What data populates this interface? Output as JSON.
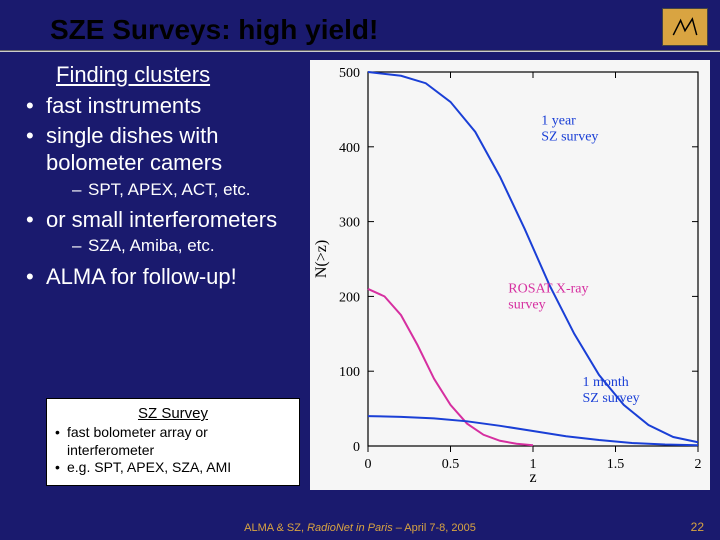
{
  "title": "SZE Surveys: high yield!",
  "logo_name": "NRAO",
  "left": {
    "heading": "Finding clusters",
    "bullets": [
      {
        "text": "fast instruments"
      },
      {
        "text": "single dishes with bolometer camers",
        "sub": [
          "SPT, APEX, ACT, etc."
        ]
      },
      {
        "text": "or small interferometers",
        "sub": [
          "SZA, Amiba, etc."
        ]
      },
      {
        "text": "ALMA for follow-up!"
      }
    ]
  },
  "box": {
    "title": "SZ Survey",
    "items": [
      "fast bolometer array or interferometer",
      "e.g. SPT, APEX, SZA, AMI"
    ]
  },
  "chart": {
    "type": "line",
    "background_color": "#f6f6f6",
    "axis_color": "#000000",
    "tick_color": "#000000",
    "xlabel": "z",
    "ylabel": "N(>z)",
    "label_fontsize": 16,
    "tick_fontsize": 14,
    "xlim": [
      0,
      2
    ],
    "ylim": [
      0,
      500
    ],
    "xtick_step": 0.5,
    "ytick_step": 100,
    "line_width": 2,
    "series": [
      {
        "label": "1 year SZ survey",
        "color": "#1a3fd6",
        "label_pos": {
          "x": 1.05,
          "y": 430
        },
        "points": [
          [
            0,
            500
          ],
          [
            0.2,
            495
          ],
          [
            0.35,
            485
          ],
          [
            0.5,
            460
          ],
          [
            0.65,
            420
          ],
          [
            0.8,
            360
          ],
          [
            0.95,
            290
          ],
          [
            1.1,
            215
          ],
          [
            1.25,
            150
          ],
          [
            1.4,
            95
          ],
          [
            1.55,
            55
          ],
          [
            1.7,
            28
          ],
          [
            1.85,
            12
          ],
          [
            2.0,
            5
          ]
        ]
      },
      {
        "label": "ROSAT X-ray survey",
        "color": "#d62fa0",
        "label_pos": {
          "x": 0.85,
          "y": 205
        },
        "points": [
          [
            0,
            210
          ],
          [
            0.1,
            200
          ],
          [
            0.2,
            175
          ],
          [
            0.3,
            135
          ],
          [
            0.4,
            90
          ],
          [
            0.5,
            55
          ],
          [
            0.6,
            30
          ],
          [
            0.7,
            15
          ],
          [
            0.8,
            7
          ],
          [
            0.9,
            3
          ],
          [
            1.0,
            1
          ]
        ]
      },
      {
        "label": "1 month SZ survey",
        "color": "#1a3fd6",
        "label_pos": {
          "x": 1.3,
          "y": 80
        },
        "points": [
          [
            0,
            40
          ],
          [
            0.2,
            39
          ],
          [
            0.4,
            37
          ],
          [
            0.6,
            33
          ],
          [
            0.8,
            27
          ],
          [
            1.0,
            20
          ],
          [
            1.2,
            13
          ],
          [
            1.4,
            8
          ],
          [
            1.6,
            4
          ],
          [
            1.8,
            2
          ],
          [
            2.0,
            1
          ]
        ]
      }
    ]
  },
  "footer": {
    "prefix": "ALMA & SZ, ",
    "italic": "RadioNet in Paris",
    "suffix": " – April 7-8, 2005"
  },
  "page_number": "22",
  "colors": {
    "slide_bg": "#1a1a6e",
    "accent": "#d9a441",
    "text_body": "#ffffff"
  }
}
